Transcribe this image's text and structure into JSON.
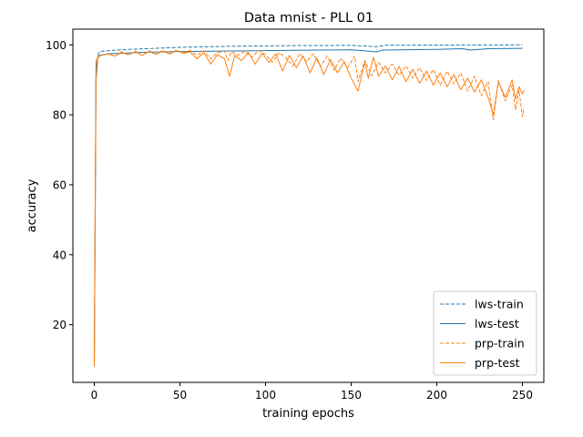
{
  "chart_data": {
    "type": "line",
    "title": "Data mnist - PLL 01",
    "xlabel": "training epochs",
    "ylabel": "accuracy",
    "xlim": [
      -12.5,
      262.5
    ],
    "ylim": [
      3.5,
      104.5
    ],
    "xticks": [
      0,
      50,
      100,
      150,
      200,
      250
    ],
    "yticks": [
      20,
      40,
      60,
      80,
      100
    ],
    "grid": false,
    "legend_position": "bottom-right",
    "series": [
      {
        "name": "lws-train",
        "style": "dashed",
        "color": "#1f77b4",
        "points": [
          [
            0,
            8
          ],
          [
            1,
            90
          ],
          [
            2,
            97
          ],
          [
            3,
            98
          ],
          [
            5,
            98.2
          ],
          [
            10,
            98.4
          ],
          [
            20,
            98.7
          ],
          [
            30,
            98.9
          ],
          [
            40,
            99.1
          ],
          [
            50,
            99.3
          ],
          [
            60,
            99.4
          ],
          [
            70,
            99.5
          ],
          [
            80,
            99.6
          ],
          [
            100,
            99.7
          ],
          [
            120,
            99.8
          ],
          [
            150,
            99.85
          ],
          [
            165,
            99.5
          ],
          [
            170,
            99.9
          ],
          [
            200,
            99.95
          ],
          [
            250,
            100
          ]
        ]
      },
      {
        "name": "lws-test",
        "style": "solid",
        "color": "#1f77b4",
        "points": [
          [
            0,
            8
          ],
          [
            1,
            90
          ],
          [
            2,
            96.5
          ],
          [
            3,
            97
          ],
          [
            5,
            97.2
          ],
          [
            10,
            97.5
          ],
          [
            20,
            97.7
          ],
          [
            30,
            97.9
          ],
          [
            40,
            98.0
          ],
          [
            50,
            98.1
          ],
          [
            70,
            98.2
          ],
          [
            90,
            98.3
          ],
          [
            110,
            98.4
          ],
          [
            130,
            98.5
          ],
          [
            150,
            98.6
          ],
          [
            165,
            98.0
          ],
          [
            168,
            98.5
          ],
          [
            200,
            98.7
          ],
          [
            215,
            98.9
          ],
          [
            220,
            98.5
          ],
          [
            230,
            98.9
          ],
          [
            250,
            99
          ]
        ]
      },
      {
        "name": "prp-train",
        "style": "dashed",
        "color": "#ff7f0e",
        "points": [
          [
            0,
            8
          ],
          [
            1,
            94
          ],
          [
            2,
            96
          ],
          [
            4,
            97
          ],
          [
            8,
            97.5
          ],
          [
            12,
            96.8
          ],
          [
            16,
            98
          ],
          [
            20,
            97.2
          ],
          [
            24,
            98.2
          ],
          [
            28,
            97
          ],
          [
            32,
            98.3
          ],
          [
            36,
            97.4
          ],
          [
            40,
            98.4
          ],
          [
            44,
            97.5
          ],
          [
            48,
            98.5
          ],
          [
            52,
            97.8
          ],
          [
            56,
            98.4
          ],
          [
            60,
            97
          ],
          [
            64,
            98.3
          ],
          [
            68,
            96
          ],
          [
            72,
            97.8
          ],
          [
            76,
            98.2
          ],
          [
            78,
            95.5
          ],
          [
            80,
            98
          ],
          [
            84,
            97
          ],
          [
            88,
            98.2
          ],
          [
            92,
            96.5
          ],
          [
            96,
            98.4
          ],
          [
            100,
            97.2
          ],
          [
            104,
            95
          ],
          [
            108,
            97.8
          ],
          [
            112,
            96.2
          ],
          [
            116,
            94
          ],
          [
            120,
            97.5
          ],
          [
            124,
            95.2
          ],
          [
            128,
            97.5
          ],
          [
            132,
            93.8
          ],
          [
            136,
            96.8
          ],
          [
            140,
            92.8
          ],
          [
            144,
            96.2
          ],
          [
            148,
            93.5
          ],
          [
            152,
            96.8
          ],
          [
            154,
            89.5
          ],
          [
            158,
            95.5
          ],
          [
            162,
            91.2
          ],
          [
            166,
            95
          ],
          [
            170,
            92
          ],
          [
            174,
            94.5
          ],
          [
            178,
            91.3
          ],
          [
            182,
            94
          ],
          [
            186,
            90.5
          ],
          [
            190,
            93.5
          ],
          [
            194,
            89.8
          ],
          [
            198,
            93
          ],
          [
            202,
            88.5
          ],
          [
            206,
            92.5
          ],
          [
            210,
            88.8
          ],
          [
            214,
            92
          ],
          [
            218,
            86.8
          ],
          [
            222,
            91
          ],
          [
            226,
            85.5
          ],
          [
            230,
            89.5
          ],
          [
            233,
            78.5
          ],
          [
            236,
            89.8
          ],
          [
            240,
            84
          ],
          [
            244,
            88.5
          ],
          [
            246,
            81.5
          ],
          [
            248,
            87
          ],
          [
            250,
            79.5
          ],
          [
            251,
            82
          ]
        ]
      },
      {
        "name": "prp-test",
        "style": "solid",
        "color": "#ff7f0e",
        "points": [
          [
            0,
            8
          ],
          [
            1,
            95
          ],
          [
            2,
            96.5
          ],
          [
            4,
            97
          ],
          [
            8,
            97.4
          ],
          [
            12,
            96.8
          ],
          [
            16,
            97.8
          ],
          [
            20,
            97.2
          ],
          [
            24,
            98
          ],
          [
            28,
            97
          ],
          [
            32,
            98.1
          ],
          [
            36,
            97.3
          ],
          [
            40,
            98.2
          ],
          [
            44,
            97.4
          ],
          [
            48,
            98.3
          ],
          [
            52,
            97.6
          ],
          [
            56,
            98
          ],
          [
            60,
            96
          ],
          [
            64,
            97.8
          ],
          [
            68,
            94.5
          ],
          [
            72,
            97.2
          ],
          [
            76,
            96
          ],
          [
            79,
            91
          ],
          [
            82,
            97
          ],
          [
            86,
            95.5
          ],
          [
            90,
            97.8
          ],
          [
            94,
            94.5
          ],
          [
            98,
            97.6
          ],
          [
            102,
            95
          ],
          [
            106,
            97.5
          ],
          [
            110,
            92.5
          ],
          [
            114,
            97
          ],
          [
            118,
            93.5
          ],
          [
            122,
            96.8
          ],
          [
            126,
            92
          ],
          [
            130,
            96.2
          ],
          [
            134,
            91.5
          ],
          [
            138,
            95.8
          ],
          [
            142,
            92
          ],
          [
            146,
            95.2
          ],
          [
            150,
            90.5
          ],
          [
            154,
            86.8
          ],
          [
            158,
            95
          ],
          [
            160,
            90.5
          ],
          [
            163,
            96.5
          ],
          [
            166,
            91
          ],
          [
            170,
            94
          ],
          [
            174,
            90
          ],
          [
            178,
            93.8
          ],
          [
            182,
            89.5
          ],
          [
            186,
            93
          ],
          [
            190,
            89
          ],
          [
            194,
            92.5
          ],
          [
            198,
            88.5
          ],
          [
            202,
            92
          ],
          [
            206,
            88
          ],
          [
            210,
            91.5
          ],
          [
            214,
            87.2
          ],
          [
            218,
            90.5
          ],
          [
            222,
            86.5
          ],
          [
            226,
            90
          ],
          [
            230,
            85
          ],
          [
            233,
            80
          ],
          [
            236,
            89.5
          ],
          [
            240,
            85
          ],
          [
            244,
            90
          ],
          [
            246,
            84.5
          ],
          [
            248,
            88
          ],
          [
            250,
            86
          ],
          [
            251,
            87
          ]
        ]
      }
    ]
  }
}
